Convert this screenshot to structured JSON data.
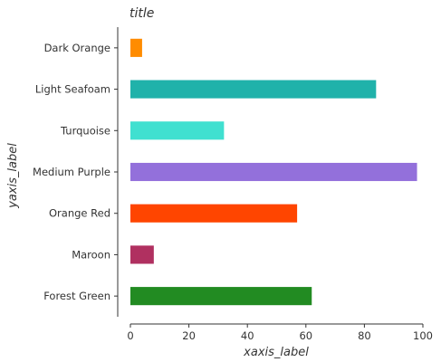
{
  "chart_data": {
    "type": "bar",
    "orientation": "horizontal",
    "title": "title",
    "xlabel": "xaxis_label",
    "ylabel": "yaxis_label",
    "categories": [
      "Forest Green",
      "Maroon",
      "Orange Red",
      "Medium Purple",
      "Turquoise",
      "Light Seafoam",
      "Dark Orange"
    ],
    "values": [
      62,
      8,
      57,
      98,
      32,
      84,
      4
    ],
    "colors": [
      "#228b22",
      "#b03060",
      "#ff4500",
      "#9370db",
      "#40e0d0",
      "#20b2aa",
      "#ff8c00"
    ],
    "xlim": [
      0,
      100
    ],
    "xticks": [
      0,
      20,
      40,
      60,
      80,
      100
    ],
    "xtick_labels": [
      "0",
      "20",
      "40",
      "60",
      "80",
      "100"
    ],
    "grid": false
  }
}
